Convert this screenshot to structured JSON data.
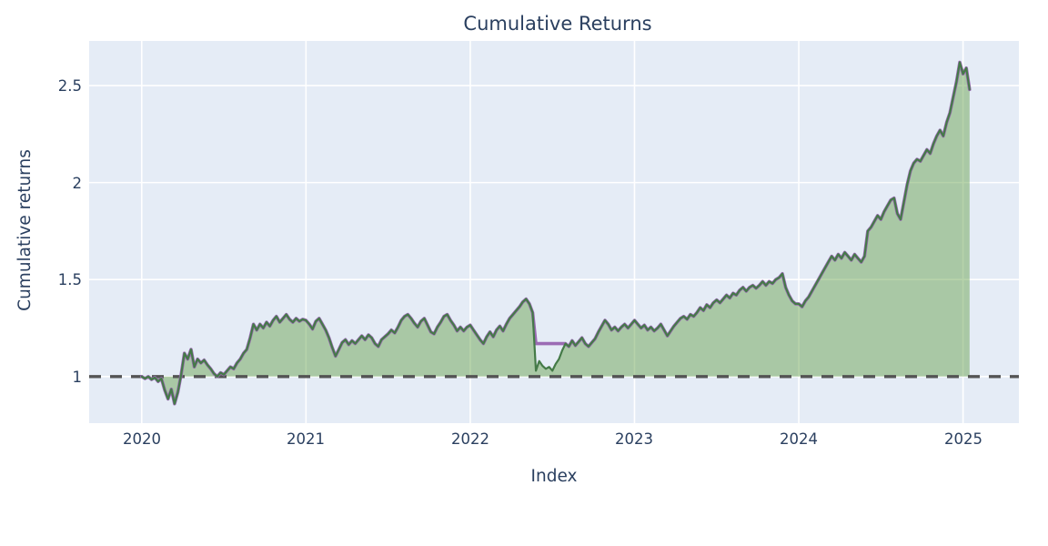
{
  "chart_data": {
    "type": "area",
    "title": "Cumulative Returns",
    "xlabel": "Index",
    "ylabel": "Cumulative returns",
    "x_ticks": [
      2020,
      2021,
      2022,
      2023,
      2024,
      2025
    ],
    "y_ticks": [
      1,
      1.5,
      2,
      2.5
    ],
    "x_range": [
      2019.68,
      2025.34
    ],
    "y_range": [
      0.76,
      2.73
    ],
    "x_start": 2020.0,
    "x_step": 0.02,
    "baseline": 1.0,
    "grid": true,
    "legend": "none",
    "plot_bg_color": "#e5ecf6",
    "paper_bg_color": "#ffffff",
    "gridline_color": "#ffffff",
    "baseline_color": "#545454",
    "baseline_dash": "13 10",
    "series": [
      {
        "name": "cumulative-returns-overlay-line",
        "color": "#9b6bb4",
        "line_width": 3.6,
        "fill": null,
        "values": [
          1.0,
          0.99,
          1.0,
          0.985,
          0.995,
          0.975,
          0.99,
          0.93,
          0.885,
          0.935,
          0.86,
          0.92,
          1.01,
          1.12,
          1.09,
          1.14,
          1.05,
          1.09,
          1.07,
          1.085,
          1.06,
          1.04,
          1.015,
          1.0,
          1.02,
          1.01,
          1.03,
          1.05,
          1.04,
          1.07,
          1.09,
          1.12,
          1.14,
          1.2,
          1.27,
          1.24,
          1.27,
          1.25,
          1.28,
          1.26,
          1.29,
          1.31,
          1.28,
          1.3,
          1.32,
          1.295,
          1.28,
          1.3,
          1.285,
          1.295,
          1.29,
          1.27,
          1.245,
          1.285,
          1.3,
          1.27,
          1.24,
          1.2,
          1.15,
          1.105,
          1.14,
          1.175,
          1.19,
          1.165,
          1.185,
          1.17,
          1.19,
          1.21,
          1.19,
          1.215,
          1.2,
          1.17,
          1.155,
          1.19,
          1.205,
          1.22,
          1.24,
          1.225,
          1.255,
          1.29,
          1.31,
          1.32,
          1.3,
          1.275,
          1.255,
          1.285,
          1.3,
          1.265,
          1.23,
          1.22,
          1.255,
          1.28,
          1.31,
          1.32,
          1.29,
          1.265,
          1.235,
          1.255,
          1.235,
          1.255,
          1.265,
          1.24,
          1.215,
          1.19,
          1.17,
          1.205,
          1.23,
          1.205,
          1.24,
          1.26,
          1.235,
          1.27,
          1.3,
          1.32,
          1.34,
          1.36,
          1.385,
          1.4,
          1.375,
          1.33,
          1.17,
          1.17,
          1.17,
          1.17,
          1.17,
          1.17,
          1.17,
          1.17,
          1.17,
          1.17,
          1.155,
          1.185,
          1.16,
          1.18,
          1.2,
          1.17,
          1.155,
          1.175,
          1.195,
          1.23,
          1.26,
          1.29,
          1.27,
          1.24,
          1.255,
          1.235,
          1.255,
          1.27,
          1.25,
          1.27,
          1.29,
          1.27,
          1.25,
          1.265,
          1.24,
          1.255,
          1.235,
          1.25,
          1.27,
          1.24,
          1.21,
          1.235,
          1.26,
          1.28,
          1.3,
          1.31,
          1.295,
          1.32,
          1.31,
          1.33,
          1.355,
          1.34,
          1.37,
          1.355,
          1.38,
          1.395,
          1.38,
          1.4,
          1.42,
          1.405,
          1.43,
          1.42,
          1.445,
          1.46,
          1.44,
          1.46,
          1.47,
          1.455,
          1.47,
          1.49,
          1.47,
          1.49,
          1.48,
          1.5,
          1.51,
          1.53,
          1.46,
          1.42,
          1.39,
          1.375,
          1.375,
          1.36,
          1.39,
          1.41,
          1.44,
          1.47,
          1.5,
          1.53,
          1.56,
          1.59,
          1.62,
          1.6,
          1.63,
          1.61,
          1.64,
          1.62,
          1.6,
          1.63,
          1.61,
          1.59,
          1.62,
          1.75,
          1.77,
          1.8,
          1.83,
          1.81,
          1.85,
          1.88,
          1.91,
          1.92,
          1.84,
          1.81,
          1.9,
          1.99,
          2.06,
          2.1,
          2.12,
          2.11,
          2.14,
          2.17,
          2.15,
          2.2,
          2.24,
          2.27,
          2.24,
          2.31,
          2.36,
          2.44,
          2.52,
          2.62,
          2.56,
          2.59,
          2.48
        ]
      },
      {
        "name": "cumulative-returns-area",
        "color": "#447a47",
        "line_width": 2.2,
        "fill": "rgba(96,158,66,0.45)",
        "values": [
          1.0,
          0.99,
          1.0,
          0.985,
          0.995,
          0.975,
          0.99,
          0.93,
          0.885,
          0.935,
          0.86,
          0.92,
          1.01,
          1.12,
          1.09,
          1.14,
          1.05,
          1.09,
          1.07,
          1.085,
          1.06,
          1.04,
          1.015,
          1.0,
          1.02,
          1.01,
          1.03,
          1.05,
          1.04,
          1.07,
          1.09,
          1.12,
          1.14,
          1.2,
          1.27,
          1.24,
          1.27,
          1.25,
          1.28,
          1.26,
          1.29,
          1.31,
          1.28,
          1.3,
          1.32,
          1.295,
          1.28,
          1.3,
          1.285,
          1.295,
          1.29,
          1.27,
          1.245,
          1.285,
          1.3,
          1.27,
          1.24,
          1.2,
          1.15,
          1.105,
          1.14,
          1.175,
          1.19,
          1.165,
          1.185,
          1.17,
          1.19,
          1.21,
          1.19,
          1.215,
          1.2,
          1.17,
          1.155,
          1.19,
          1.205,
          1.22,
          1.24,
          1.225,
          1.255,
          1.29,
          1.31,
          1.32,
          1.3,
          1.275,
          1.255,
          1.285,
          1.3,
          1.265,
          1.23,
          1.22,
          1.255,
          1.28,
          1.31,
          1.32,
          1.29,
          1.265,
          1.235,
          1.255,
          1.235,
          1.255,
          1.265,
          1.24,
          1.215,
          1.19,
          1.17,
          1.205,
          1.23,
          1.205,
          1.24,
          1.26,
          1.235,
          1.27,
          1.3,
          1.32,
          1.34,
          1.36,
          1.385,
          1.4,
          1.375,
          1.33,
          1.03,
          1.08,
          1.055,
          1.04,
          1.05,
          1.03,
          1.065,
          1.09,
          1.135,
          1.17,
          1.155,
          1.185,
          1.16,
          1.18,
          1.2,
          1.17,
          1.155,
          1.175,
          1.195,
          1.23,
          1.26,
          1.29,
          1.27,
          1.24,
          1.255,
          1.235,
          1.255,
          1.27,
          1.25,
          1.27,
          1.29,
          1.27,
          1.25,
          1.265,
          1.24,
          1.255,
          1.235,
          1.25,
          1.27,
          1.24,
          1.21,
          1.235,
          1.26,
          1.28,
          1.3,
          1.31,
          1.295,
          1.32,
          1.31,
          1.33,
          1.355,
          1.34,
          1.37,
          1.355,
          1.38,
          1.395,
          1.38,
          1.4,
          1.42,
          1.405,
          1.43,
          1.42,
          1.445,
          1.46,
          1.44,
          1.46,
          1.47,
          1.455,
          1.47,
          1.49,
          1.47,
          1.49,
          1.48,
          1.5,
          1.51,
          1.53,
          1.46,
          1.42,
          1.39,
          1.375,
          1.375,
          1.36,
          1.39,
          1.41,
          1.44,
          1.47,
          1.5,
          1.53,
          1.56,
          1.59,
          1.62,
          1.6,
          1.63,
          1.61,
          1.64,
          1.62,
          1.6,
          1.63,
          1.61,
          1.59,
          1.62,
          1.75,
          1.77,
          1.8,
          1.83,
          1.81,
          1.85,
          1.88,
          1.91,
          1.92,
          1.84,
          1.81,
          1.9,
          1.99,
          2.06,
          2.1,
          2.12,
          2.11,
          2.14,
          2.17,
          2.15,
          2.2,
          2.24,
          2.27,
          2.24,
          2.31,
          2.36,
          2.44,
          2.52,
          2.62,
          2.56,
          2.59,
          2.48
        ]
      }
    ]
  }
}
